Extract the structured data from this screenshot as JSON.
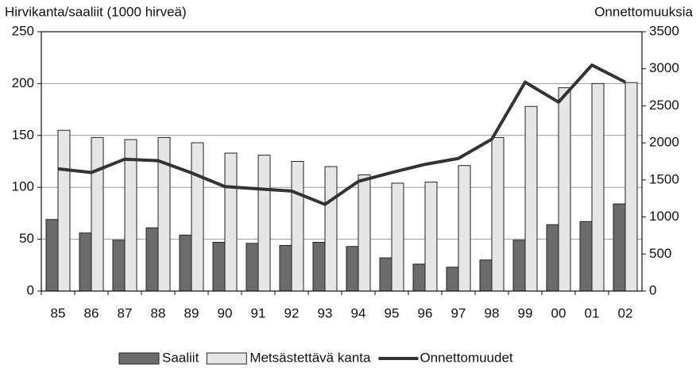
{
  "chart_data": {
    "type": "bar",
    "y_label": "Hirvikanta/saaliit (1000 hirveä)",
    "y2_label": "Onnettomuuksia",
    "categories": [
      "85",
      "86",
      "87",
      "88",
      "89",
      "90",
      "91",
      "92",
      "93",
      "94",
      "95",
      "96",
      "97",
      "98",
      "99",
      "00",
      "01",
      "02"
    ],
    "series": [
      {
        "name": "Saaliit",
        "color": "#6b6b6b",
        "type": "bar",
        "values": [
          69,
          56,
          49,
          61,
          54,
          47,
          46,
          44,
          47,
          43,
          32,
          26,
          23,
          30,
          49,
          64,
          67,
          84
        ]
      },
      {
        "name": "Metsästettävä kanta",
        "color": "#e6e6e6",
        "type": "bar",
        "values": [
          155,
          148,
          146,
          148,
          143,
          133,
          131,
          125,
          120,
          112,
          104,
          105,
          121,
          148,
          178,
          196,
          200,
          201
        ]
      },
      {
        "name": "Onnettomuudet",
        "color": "#333333",
        "type": "line",
        "axis": "y2",
        "values": [
          1650,
          1600,
          1780,
          1760,
          1595,
          1410,
          1380,
          1350,
          1170,
          1480,
          1600,
          1710,
          1790,
          2050,
          2820,
          2550,
          3050,
          2820
        ]
      }
    ],
    "ylim": [
      0,
      250
    ],
    "yticks": [
      0,
      50,
      100,
      150,
      200,
      250
    ],
    "y2lim": [
      0,
      3500
    ],
    "y2ticks": [
      0,
      500,
      1000,
      1500,
      2000,
      2500,
      3000,
      3500
    ],
    "grid": true,
    "legend": "bottom"
  }
}
